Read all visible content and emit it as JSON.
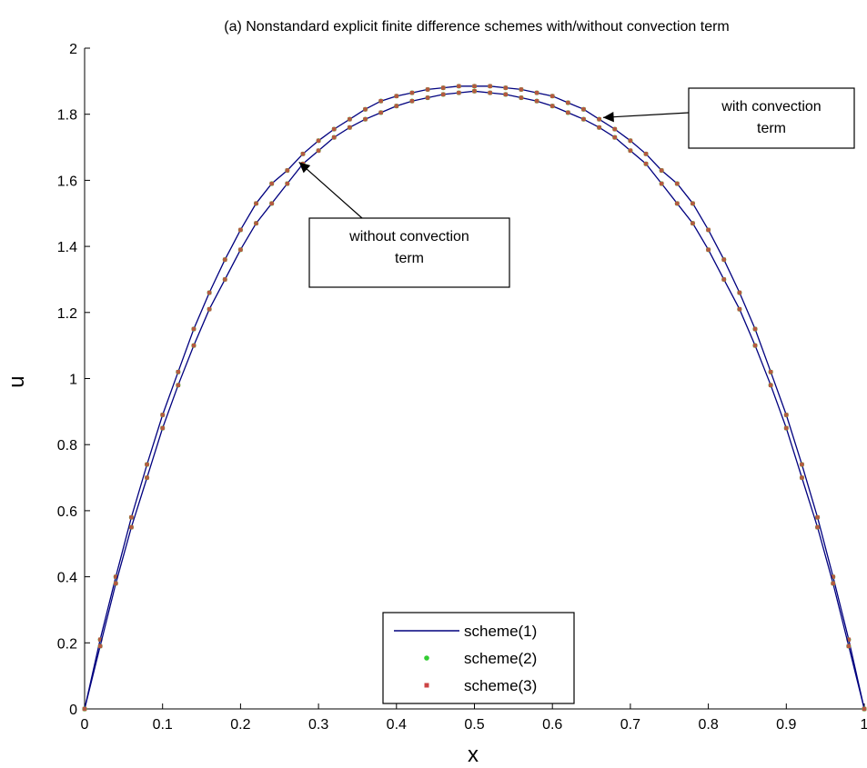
{
  "chart_data": {
    "type": "line",
    "title": "(a) Nonstandard explicit finite difference schemes with/without convection term",
    "xlabel": "x",
    "ylabel": "u",
    "xlim": [
      0,
      1
    ],
    "ylim": [
      0,
      2
    ],
    "xticks": [
      "0",
      "0.1",
      "0.2",
      "0.3",
      "0.4",
      "0.5",
      "0.6",
      "0.7",
      "0.8",
      "0.9",
      "1"
    ],
    "yticks": [
      "0",
      "0.2",
      "0.4",
      "0.6",
      "0.8",
      "1",
      "1.2",
      "1.4",
      "1.6",
      "1.8",
      "2"
    ],
    "grid": false,
    "legend_position": "bottom-center",
    "x": [
      0,
      0.02,
      0.04,
      0.06,
      0.08,
      0.1,
      0.12,
      0.14,
      0.16,
      0.18,
      0.2,
      0.22,
      0.24,
      0.26,
      0.28,
      0.3,
      0.32,
      0.34,
      0.36,
      0.38,
      0.4,
      0.42,
      0.44,
      0.46,
      0.48,
      0.5,
      0.52,
      0.54,
      0.56,
      0.58,
      0.6,
      0.62,
      0.64,
      0.66,
      0.68,
      0.7,
      0.72,
      0.74,
      0.76,
      0.78,
      0.8,
      0.82,
      0.84,
      0.86,
      0.88,
      0.9,
      0.92,
      0.94,
      0.96,
      0.98,
      1
    ],
    "curves": [
      {
        "label": "with convection term",
        "y": [
          0,
          0.21,
          0.4,
          0.58,
          0.74,
          0.89,
          1.02,
          1.15,
          1.26,
          1.36,
          1.45,
          1.53,
          1.59,
          1.63,
          1.68,
          1.72,
          1.755,
          1.785,
          1.815,
          1.84,
          1.855,
          1.865,
          1.875,
          1.88,
          1.885,
          1.885,
          1.885,
          1.88,
          1.875,
          1.865,
          1.855,
          1.835,
          1.815,
          1.785,
          1.755,
          1.72,
          1.68,
          1.63,
          1.59,
          1.53,
          1.45,
          1.36,
          1.26,
          1.15,
          1.02,
          0.89,
          0.74,
          0.58,
          0.4,
          0.21,
          0
        ]
      },
      {
        "label": "without convection term",
        "y": [
          0,
          0.19,
          0.38,
          0.55,
          0.7,
          0.85,
          0.98,
          1.1,
          1.21,
          1.3,
          1.39,
          1.47,
          1.53,
          1.59,
          1.65,
          1.69,
          1.73,
          1.76,
          1.785,
          1.805,
          1.825,
          1.84,
          1.85,
          1.86,
          1.865,
          1.87,
          1.865,
          1.86,
          1.85,
          1.84,
          1.825,
          1.805,
          1.785,
          1.76,
          1.73,
          1.69,
          1.65,
          1.59,
          1.53,
          1.47,
          1.39,
          1.3,
          1.21,
          1.1,
          0.98,
          0.85,
          0.7,
          0.55,
          0.38,
          0.19,
          0
        ]
      }
    ],
    "series": [
      {
        "name": "scheme(1)",
        "style": "line",
        "color": "#00007f"
      },
      {
        "name": "scheme(2)",
        "style": "marker-dot",
        "color": "#33cc33"
      },
      {
        "name": "scheme(3)",
        "style": "marker-dot",
        "color": "#cc4444"
      }
    ],
    "annotations": [
      {
        "text_lines": [
          "with convection",
          "term"
        ],
        "arrow_to": [
          0.665,
          1.79
        ]
      },
      {
        "text_lines": [
          "without convection",
          "term"
        ],
        "arrow_to": [
          0.275,
          1.655
        ]
      }
    ]
  }
}
